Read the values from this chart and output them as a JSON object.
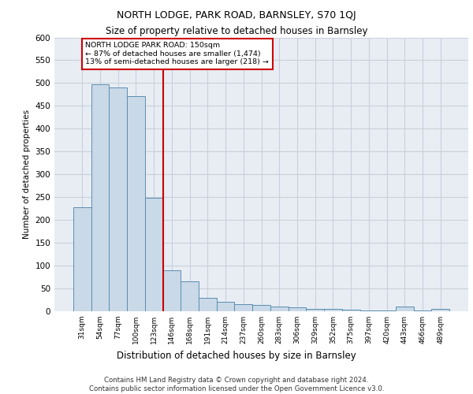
{
  "title1": "NORTH LODGE, PARK ROAD, BARNSLEY, S70 1QJ",
  "title2": "Size of property relative to detached houses in Barnsley",
  "xlabel": "Distribution of detached houses by size in Barnsley",
  "ylabel": "Number of detached properties",
  "footnote": "Contains HM Land Registry data © Crown copyright and database right 2024.\nContains public sector information licensed under the Open Government Licence v3.0.",
  "categories": [
    "31sqm",
    "54sqm",
    "77sqm",
    "100sqm",
    "123sqm",
    "146sqm",
    "168sqm",
    "191sqm",
    "214sqm",
    "237sqm",
    "260sqm",
    "283sqm",
    "306sqm",
    "329sqm",
    "352sqm",
    "375sqm",
    "397sqm",
    "420sqm",
    "443sqm",
    "466sqm",
    "489sqm"
  ],
  "values": [
    228,
    497,
    490,
    472,
    248,
    90,
    65,
    30,
    20,
    15,
    14,
    10,
    8,
    5,
    5,
    3,
    2,
    2,
    10,
    2,
    5
  ],
  "bar_color": "#c9d9e8",
  "bar_edge_color": "#5b8db0",
  "grid_color": "#c8d0dc",
  "bg_color": "#e8edf4",
  "vline_x": 4.5,
  "vline_color": "#cc0000",
  "annotation_text": "NORTH LODGE PARK ROAD: 150sqm\n← 87% of detached houses are smaller (1,474)\n13% of semi-detached houses are larger (218) →",
  "annotation_box_color": "#cc0000",
  "ylim": [
    0,
    600
  ],
  "yticks": [
    0,
    50,
    100,
    150,
    200,
    250,
    300,
    350,
    400,
    450,
    500,
    550,
    600
  ]
}
